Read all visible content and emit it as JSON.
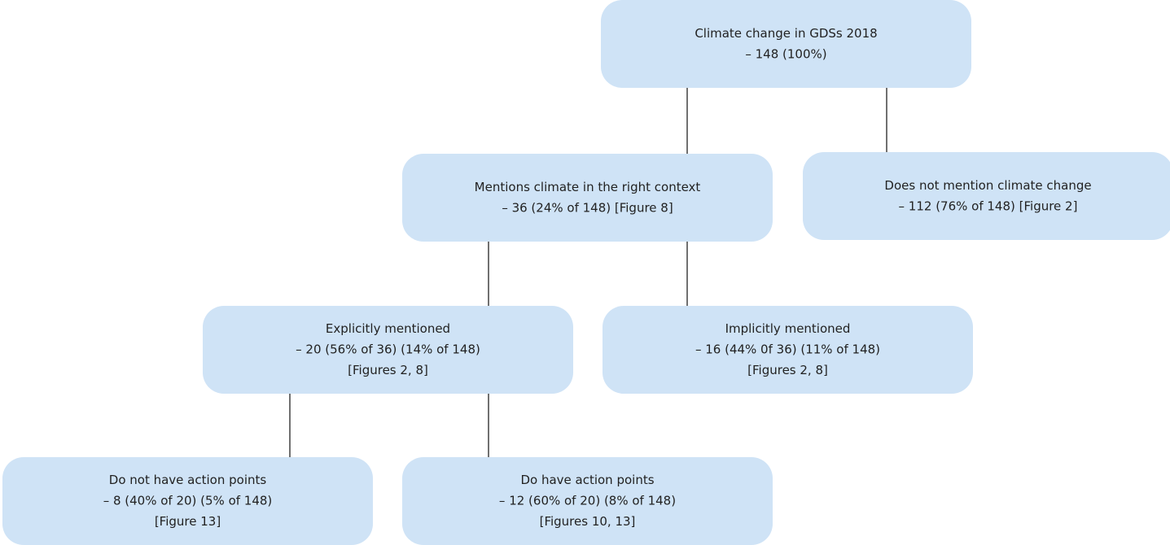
{
  "nodes": [
    {
      "lines": [
        "Climate change in GDSs 2018",
        "– 148 (100%)"
      ]
    },
    {
      "lines": [
        "Mentions climate in the right context",
        "– 36 (24% of 148) [Figure 8]"
      ]
    },
    {
      "lines": [
        "Does not mention climate change",
        "– 112 (76% of 148) [Figure 2]"
      ]
    },
    {
      "lines": [
        "Explicitly mentioned",
        "– 20 (56% of 36) (14% of 148)",
        "[Figures 2, 8]"
      ]
    },
    {
      "lines": [
        "Implicitly mentioned",
        "– 16 (44% 0f 36) (11% of 148)",
        "[Figures 2, 8]"
      ]
    },
    {
      "lines": [
        "Do not have action points",
        "– 8 (40% of 20) (5% of 148)",
        "[Figure 13]"
      ]
    },
    {
      "lines": [
        "Do have action points",
        "– 12 (60% of 20) (8% of 148)",
        "[Figures 10, 13]"
      ]
    }
  ]
}
